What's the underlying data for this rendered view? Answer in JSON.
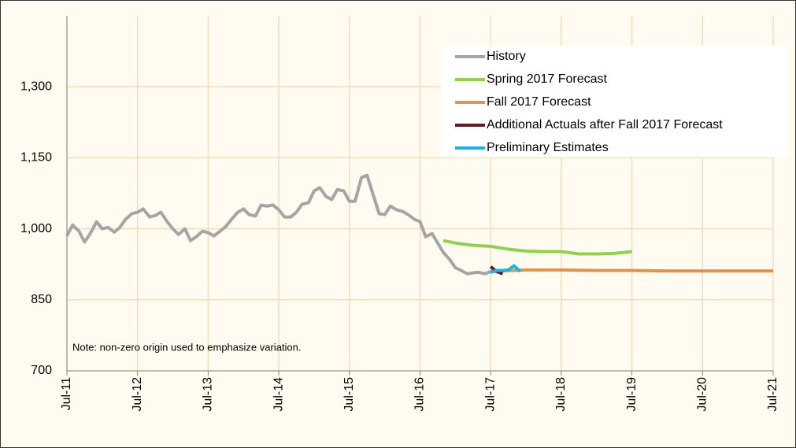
{
  "chart_data": {
    "type": "line",
    "note": "Note: non-zero origin used to emphasize variation.",
    "xlim": [
      2011.5,
      2021.5
    ],
    "xticks": [
      {
        "value": 2011.5,
        "label": "Jul-11"
      },
      {
        "value": 2012.5,
        "label": "Jul-12"
      },
      {
        "value": 2013.5,
        "label": "Jul-13"
      },
      {
        "value": 2014.5,
        "label": "Jul-14"
      },
      {
        "value": 2015.5,
        "label": "Jul-15"
      },
      {
        "value": 2016.5,
        "label": "Jul-16"
      },
      {
        "value": 2017.5,
        "label": "Jul-17"
      },
      {
        "value": 2018.5,
        "label": "Jul-18"
      },
      {
        "value": 2019.5,
        "label": "Jul-19"
      },
      {
        "value": 2020.5,
        "label": "Jul-20"
      },
      {
        "value": 2021.5,
        "label": "Jul-21"
      }
    ],
    "ylim": [
      700,
      1450
    ],
    "yticks": [
      700,
      850,
      {
        "value": 1000,
        "label": "1,000"
      },
      {
        "value": 1150,
        "label": "1,150"
      },
      {
        "value": 1300,
        "label": "1,300"
      }
    ],
    "grid": true,
    "legend": "upper right",
    "series": [
      {
        "name": "History",
        "color": "#a5a5a5",
        "x": [
          2011.5,
          2011.58,
          2011.67,
          2011.75,
          2011.83,
          2011.92,
          2012.0,
          2012.08,
          2012.17,
          2012.25,
          2012.33,
          2012.42,
          2012.5,
          2012.58,
          2012.67,
          2012.75,
          2012.83,
          2012.92,
          2013.0,
          2013.08,
          2013.17,
          2013.25,
          2013.33,
          2013.42,
          2013.5,
          2013.58,
          2013.67,
          2013.75,
          2013.83,
          2013.92,
          2014.0,
          2014.08,
          2014.17,
          2014.25,
          2014.33,
          2014.42,
          2014.5,
          2014.58,
          2014.67,
          2014.75,
          2014.83,
          2014.92,
          2015.0,
          2015.08,
          2015.17,
          2015.25,
          2015.33,
          2015.42,
          2015.5,
          2015.58,
          2015.67,
          2015.75,
          2015.83,
          2015.92,
          2016.0,
          2016.08,
          2016.17,
          2016.25,
          2016.33,
          2016.42,
          2016.5,
          2016.58,
          2016.67,
          2016.75,
          2016.83,
          2016.92,
          2017.0,
          2017.08,
          2017.17,
          2017.25,
          2017.33,
          2017.42,
          2017.5
        ],
        "values": [
          985,
          1008,
          995,
          972,
          990,
          1015,
          1000,
          1003,
          993,
          1003,
          1020,
          1032,
          1035,
          1042,
          1025,
          1028,
          1035,
          1015,
          1000,
          988,
          1000,
          975,
          983,
          995,
          992,
          985,
          995,
          1005,
          1020,
          1035,
          1042,
          1030,
          1027,
          1050,
          1048,
          1050,
          1040,
          1025,
          1025,
          1035,
          1052,
          1055,
          1080,
          1087,
          1068,
          1062,
          1083,
          1080,
          1058,
          1058,
          1108,
          1113,
          1075,
          1032,
          1030,
          1048,
          1040,
          1037,
          1030,
          1020,
          1015,
          983,
          990,
          970,
          950,
          935,
          918,
          912,
          905,
          907,
          908,
          905,
          910
        ]
      },
      {
        "name": "Spring 2017 Forecast",
        "color": "#92d050",
        "x": [
          2016.83,
          2017.0,
          2017.25,
          2017.5,
          2017.75,
          2018.0,
          2018.25,
          2018.5,
          2018.75,
          2019.0,
          2019.25,
          2019.5
        ],
        "values": [
          975,
          970,
          965,
          963,
          957,
          953,
          952,
          952,
          947,
          947,
          948,
          952
        ]
      },
      {
        "name": "Fall 2017 Forecast",
        "color": "#e3924a",
        "x": [
          2017.5,
          2017.83,
          2018.0,
          2018.5,
          2019.0,
          2019.5,
          2020.0,
          2020.5,
          2021.0,
          2021.5
        ],
        "values": [
          910,
          912,
          913,
          913,
          912,
          912,
          911,
          911,
          911,
          911
        ]
      },
      {
        "name": "Additional Actuals after Fall 2017 Forecast",
        "color": "#5b1f1f",
        "x": [
          2017.5,
          2017.58,
          2017.67
        ],
        "values": [
          920,
          910,
          905
        ]
      },
      {
        "name": "Preliminary Estimates",
        "color": "#1fb0e8",
        "x": [
          2017.5,
          2017.58,
          2017.67,
          2017.75,
          2017.83,
          2017.92
        ],
        "values": [
          908,
          912,
          912,
          913,
          922,
          910
        ]
      }
    ]
  }
}
